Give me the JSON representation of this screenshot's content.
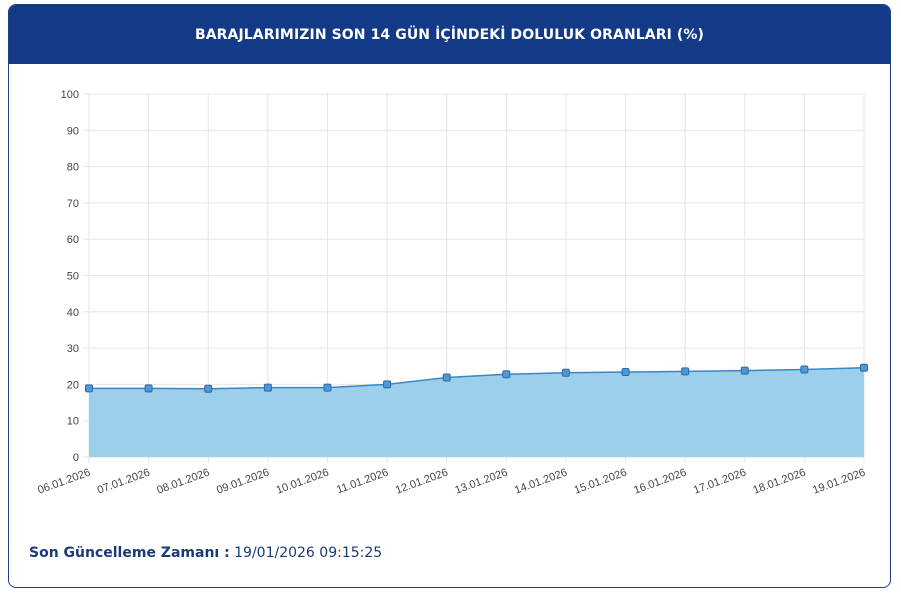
{
  "header": {
    "title": "BARAJLARIMIZIN SON 14 GÜN İÇİNDEKİ DOLULUK ORANLARI (%)"
  },
  "footer": {
    "label": "Son Güncelleme Zamanı :",
    "value": "19/01/2026 09:15:25"
  },
  "colors": {
    "header_bg": "#133a86",
    "fill": "#9bcfec",
    "line": "#3b86c4",
    "marker": "#4f97d6",
    "grid": "#e6e6e6"
  },
  "chart_data": {
    "type": "area",
    "categories": [
      "06.01.2026",
      "07.01.2026",
      "08.01.2026",
      "09.01.2026",
      "10.01.2026",
      "11.01.2026",
      "12.01.2026",
      "13.01.2026",
      "14.01.2026",
      "15.01.2026",
      "16.01.2026",
      "17.01.2026",
      "18.01.2026",
      "19.01.2026"
    ],
    "series": [
      {
        "values": [
          18.9,
          18.9,
          18.8,
          19.1,
          19.1,
          20.0,
          21.9,
          22.8,
          23.2,
          23.4,
          23.6,
          23.8,
          24.1,
          24.6
        ]
      }
    ],
    "ylim": [
      0,
      100
    ],
    "yticks": [
      0,
      10,
      20,
      30,
      40,
      50,
      60,
      70,
      80,
      90,
      100
    ],
    "grid": true
  }
}
